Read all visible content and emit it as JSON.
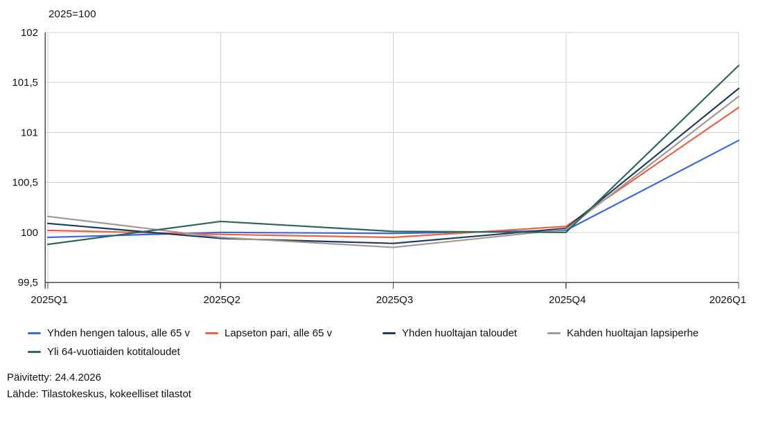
{
  "header": {
    "title": "2025=100"
  },
  "chart_data": {
    "type": "line",
    "title": "2025=100",
    "categories": [
      "2025Q1",
      "2025Q2",
      "2025Q3",
      "2025Q4",
      "2026Q1"
    ],
    "ylim": [
      99.5,
      102
    ],
    "grid": true,
    "legend_position": "bottom-left",
    "y_ticks": [
      {
        "value": 102,
        "label": "102"
      },
      {
        "value": 101.5,
        "label": "101,5"
      },
      {
        "value": 101,
        "label": "101"
      },
      {
        "value": 100.5,
        "label": "100,5"
      },
      {
        "value": 100,
        "label": "100"
      },
      {
        "value": 99.5,
        "label": "99,5"
      }
    ],
    "series": [
      {
        "name": "Yhden hengen talous, alle 65 v",
        "color": "#3A68E0",
        "values": [
          99.95,
          100.0,
          99.99,
          100.02,
          100.92
        ]
      },
      {
        "name": "Lapseton pari, alle 65 v",
        "color": "#EE5F47",
        "values": [
          100.02,
          99.98,
          99.95,
          100.06,
          101.25
        ]
      },
      {
        "name": "Yhden huoltajan taloudet",
        "color": "#1F3A5F",
        "values": [
          100.09,
          99.94,
          99.89,
          100.04,
          101.44
        ]
      },
      {
        "name": "Kahden huoltajan lapsiperhe",
        "color": "#A39792",
        "values": [
          100.16,
          99.95,
          99.85,
          100.03,
          101.36
        ]
      },
      {
        "name": "Yli 64-vuotiaiden kotitaloudet",
        "color": "#2C685A",
        "values": [
          99.88,
          100.11,
          100.01,
          100.0,
          101.67
        ]
      }
    ],
    "axis_color": "#4a4a4a",
    "gridline_color": "#cfcfcf",
    "label_color": "#111111"
  },
  "legend": {
    "items": [
      {
        "label": "Yhden hengen talous, alle 65 v",
        "color": "#3A68E0"
      },
      {
        "label": "Lapseton pari, alle 65 v",
        "color": "#EE5F47"
      },
      {
        "label": "Yhden huoltajan taloudet",
        "color": "#1F3A5F"
      },
      {
        "label": "Kahden huoltajan lapsiperhe",
        "color": "#A39792"
      },
      {
        "label": "Yli 64-vuotiaiden kotitaloudet",
        "color": "#2C685A"
      }
    ]
  },
  "footer": {
    "updated": "Päivitetty: 24.4.2026",
    "source": "Lähde: Tilastokeskus, kokeelliset tilastot"
  }
}
